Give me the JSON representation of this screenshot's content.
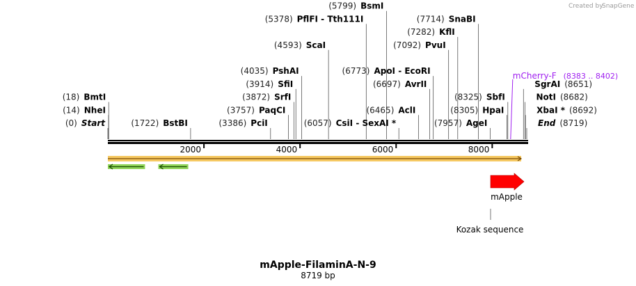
{
  "credit": {
    "text": "Created by",
    "brand": "SnapGene"
  },
  "title": "mApple-FilaminA-N-9",
  "subtitle": "8719 bp",
  "sequence_length": 8719,
  "ticks": [
    {
      "value": 2000,
      "label": "2000"
    },
    {
      "value": 4000,
      "label": "4000"
    },
    {
      "value": 6000,
      "label": "6000"
    },
    {
      "value": 8000,
      "label": "8000"
    }
  ],
  "sites": [
    {
      "pos": 0,
      "pos_label": "(0)",
      "name": "Start",
      "italic": true,
      "row": 0,
      "side": "left"
    },
    {
      "pos": 14,
      "pos_label": "(14)",
      "name": "NheI",
      "row": 1,
      "side": "left"
    },
    {
      "pos": 18,
      "pos_label": "(18)",
      "name": "BmtI",
      "row": 2,
      "side": "left"
    },
    {
      "pos": 1722,
      "pos_label": "(1722)",
      "name": "BstBI",
      "row": 0,
      "side": "left"
    },
    {
      "pos": 3386,
      "pos_label": "(3386)",
      "name": "PciI",
      "row": 0,
      "side": "left"
    },
    {
      "pos": 3757,
      "pos_label": "(3757)",
      "name": "PaqCI",
      "row": 1,
      "side": "left"
    },
    {
      "pos": 3872,
      "pos_label": "(3872)",
      "name": "SrfI",
      "row": 2,
      "side": "left"
    },
    {
      "pos": 3914,
      "pos_label": "(3914)",
      "name": "SfiI",
      "row": 3,
      "side": "left"
    },
    {
      "pos": 4035,
      "pos_label": "(4035)",
      "name": "PshAI",
      "row": 4,
      "side": "left"
    },
    {
      "pos": 4593,
      "pos_label": "(4593)",
      "name": "ScaI",
      "row": 6,
      "side": "left"
    },
    {
      "pos": 5378,
      "pos_label": "(5378)",
      "name": "PflFI - Tth111I",
      "row": 8,
      "side": "left"
    },
    {
      "pos": 5799,
      "pos_label": "(5799)",
      "name": "BsmI",
      "row": 9,
      "side": "left"
    },
    {
      "pos": 6057,
      "pos_label": "(6057)",
      "name": "CsiI - SexAI *",
      "row": 0,
      "side": "left"
    },
    {
      "pos": 6465,
      "pos_label": "(6465)",
      "name": "AclI",
      "row": 1,
      "side": "left"
    },
    {
      "pos": 6697,
      "pos_label": "(6697)",
      "name": "AvrII",
      "row": 3,
      "side": "left"
    },
    {
      "pos": 6773,
      "pos_label": "(6773)",
      "name": "ApoI - EcoRI",
      "row": 4,
      "side": "left"
    },
    {
      "pos": 7092,
      "pos_label": "(7092)",
      "name": "PvuI",
      "row": 6,
      "side": "left"
    },
    {
      "pos": 7282,
      "pos_label": "(7282)",
      "name": "KflI",
      "row": 7,
      "side": "left"
    },
    {
      "pos": 7714,
      "pos_label": "(7714)",
      "name": "SnaBI",
      "row": 8,
      "side": "left"
    },
    {
      "pos": 7957,
      "pos_label": "(7957)",
      "name": "AgeI",
      "row": 0,
      "side": "left"
    },
    {
      "pos": 8305,
      "pos_label": "(8305)",
      "name": "HpaI",
      "row": 1,
      "side": "left"
    },
    {
      "pos": 8325,
      "pos_label": "(8325)",
      "name": "SbfI",
      "row": 2,
      "side": "left"
    },
    {
      "pos": 8651,
      "pos_label": "(8651)",
      "name": "SgrAI",
      "row": 3,
      "side": "right"
    },
    {
      "pos": 8682,
      "pos_label": "(8682)",
      "name": "NotI",
      "row": 2,
      "side": "right"
    },
    {
      "pos": 8692,
      "pos_label": "(8692)",
      "name": "XbaI *",
      "row": 1,
      "side": "right"
    },
    {
      "pos": 8719,
      "pos_label": "(8719)",
      "name": "End",
      "italic": true,
      "row": 0,
      "side": "right"
    }
  ],
  "primer": {
    "name": "mCherry-F",
    "range_label": "(8383 .. 8402)",
    "pos": 8383,
    "color": "#a020f0"
  },
  "features": [
    {
      "name": "mApple",
      "start": 8000,
      "end": 8719,
      "color": "#ff0000",
      "type": "arrow"
    },
    {
      "name": "Kozak sequence",
      "pos": 8000,
      "type": "label"
    }
  ],
  "orf_bar": {
    "start": 0,
    "end": 8719,
    "color": "#e8b830"
  },
  "orfs_reverse": [
    {
      "start": 0,
      "end": 600,
      "color": "#7ccd3c"
    },
    {
      "start": 1050,
      "end": 1500,
      "color": "#7ccd3c"
    }
  ],
  "colors": {
    "backbone": "#000000",
    "orf": "#f4c048",
    "green": "#7ccd3c"
  }
}
